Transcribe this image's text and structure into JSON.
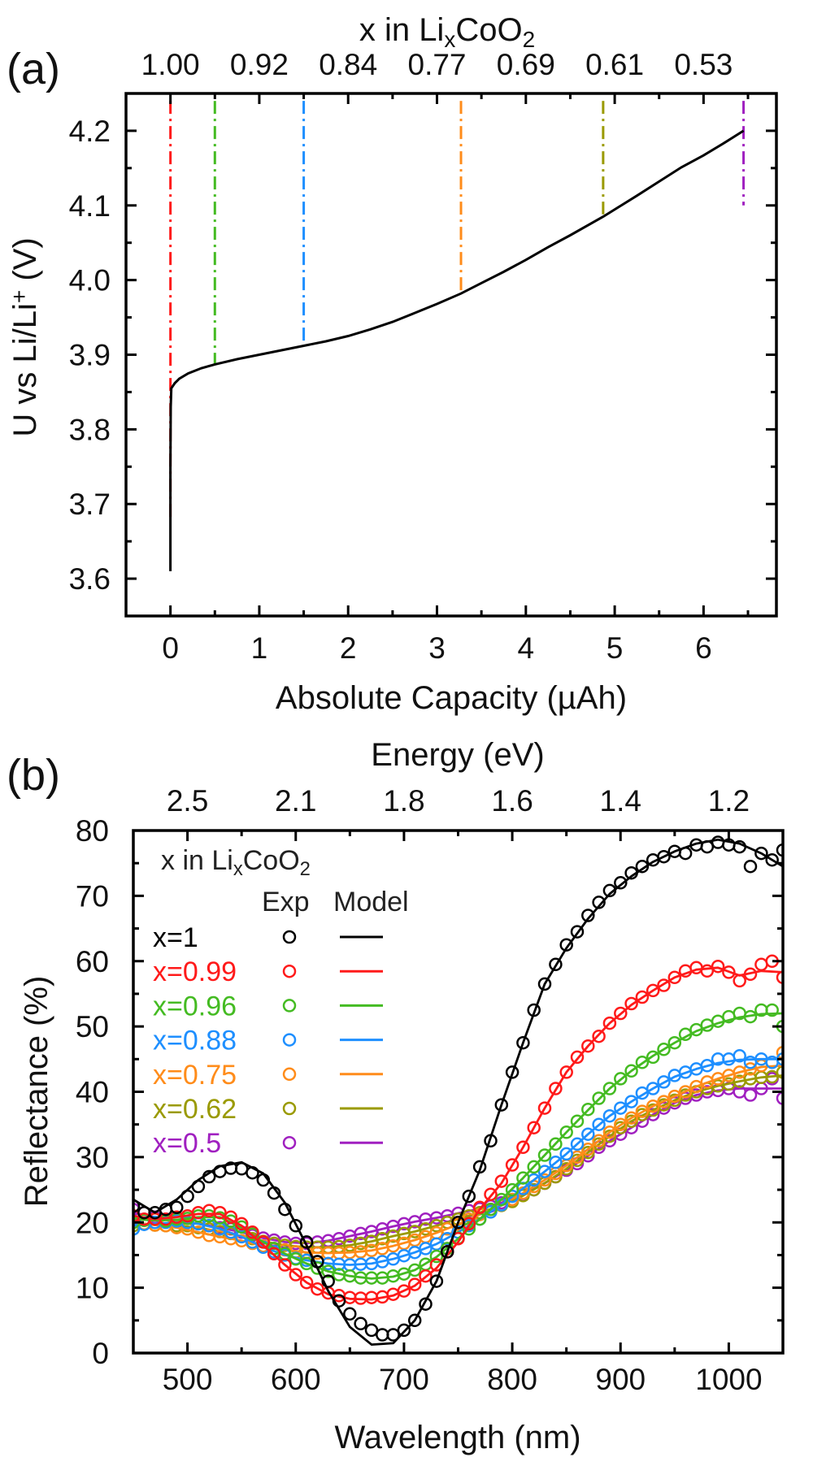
{
  "chart_data": [
    {
      "panel_label": "(a)",
      "type": "line",
      "xlabel": "Absolute Capacity (µAh)",
      "ylabel_parts": [
        {
          "t": "U vs Li/Li"
        },
        {
          "t": "+",
          "sup": true
        },
        {
          "t": " (V)"
        }
      ],
      "top_xlabel_parts": [
        {
          "t": "x in Li"
        },
        {
          "t": "x",
          "sub": true
        },
        {
          "t": "CoO"
        },
        {
          "t": "2",
          "sub": true
        }
      ],
      "xlim": [
        -0.5,
        6.82
      ],
      "ylim": [
        3.55,
        4.25
      ],
      "xticks": [
        0,
        1,
        2,
        3,
        4,
        5,
        6
      ],
      "xtick_labels": [
        "0",
        "1",
        "2",
        "3",
        "4",
        "5",
        "6"
      ],
      "yticks": [
        3.6,
        3.7,
        3.8,
        3.9,
        4.0,
        4.1,
        4.2
      ],
      "ytick_labels": [
        "3.6",
        "3.7",
        "3.8",
        "3.9",
        "4.0",
        "4.1",
        "4.2"
      ],
      "top_tick_labels": [
        "1.00",
        "0.92",
        "0.84",
        "0.77",
        "0.69",
        "0.61",
        "0.53"
      ],
      "grid": false,
      "curve": {
        "color": "#000000",
        "x": [
          0,
          0,
          0.003,
          0.01,
          0.05,
          0.1,
          0.2,
          0.35,
          0.5,
          0.75,
          1,
          1.25,
          1.5,
          1.75,
          2,
          2.25,
          2.5,
          2.75,
          3,
          3.27,
          3.5,
          3.75,
          4,
          4.25,
          4.5,
          4.87,
          5.25,
          5.5,
          5.75,
          6,
          6.25,
          6.45
        ],
        "y": [
          3.61,
          3.75,
          3.83,
          3.855,
          3.862,
          3.868,
          3.875,
          3.882,
          3.887,
          3.894,
          3.9,
          3.906,
          3.912,
          3.918,
          3.925,
          3.934,
          3.944,
          3.956,
          3.968,
          3.982,
          3.996,
          4.011,
          4.027,
          4.044,
          4.06,
          4.085,
          4.113,
          4.132,
          4.151,
          4.167,
          4.185,
          4.2
        ]
      },
      "markers": [
        {
          "x": 0.0,
          "y_from": 3.68,
          "y_to": 4.24,
          "color": "#ff1a1a"
        },
        {
          "x": 0.5,
          "y_from": 3.887,
          "y_to": 4.24,
          "color": "#44bb22"
        },
        {
          "x": 1.5,
          "y_from": 3.912,
          "y_to": 4.24,
          "color": "#1e8fff"
        },
        {
          "x": 3.27,
          "y_from": 3.985,
          "y_to": 4.24,
          "color": "#ff8c1a"
        },
        {
          "x": 4.87,
          "y_from": 4.088,
          "y_to": 4.24,
          "color": "#9a9a00"
        },
        {
          "x": 6.45,
          "y_from": 4.1,
          "y_to": 4.24,
          "color": "#a020c0"
        }
      ]
    },
    {
      "panel_label": "(b)",
      "type": "scatter+line",
      "xlabel": "Wavelength (nm)",
      "ylabel": "Reflectance (%)",
      "top_xlabel": "Energy (eV)",
      "xlim": [
        450,
        1050
      ],
      "ylim": [
        0,
        80
      ],
      "xticks": [
        500,
        600,
        700,
        800,
        900,
        1000
      ],
      "xtick_labels": [
        "500",
        "600",
        "700",
        "800",
        "900",
        "1000"
      ],
      "yticks": [
        0,
        10,
        20,
        30,
        40,
        50,
        60,
        70,
        80
      ],
      "ytick_labels": [
        "0",
        "10",
        "20",
        "30",
        "40",
        "50",
        "60",
        "70",
        "80"
      ],
      "top_tick_labels": [
        "2.5",
        "2.1",
        "1.8",
        "1.6",
        "1.4",
        "1.2"
      ],
      "grid": false,
      "legend": {
        "placement": "top-left",
        "title_parts": [
          {
            "t": "x in Li"
          },
          {
            "t": "x",
            "sub": true
          },
          {
            "t": "CoO"
          },
          {
            "t": "2",
            "sub": true
          }
        ],
        "exp_header": "Exp",
        "model_header": "Model"
      },
      "model_wavelengths": [
        450,
        470,
        490,
        510,
        530,
        550,
        570,
        590,
        610,
        630,
        650,
        670,
        690,
        710,
        730,
        750,
        770,
        790,
        810,
        830,
        850,
        870,
        890,
        910,
        930,
        950,
        970,
        990,
        1010,
        1030,
        1050
      ],
      "exp_wavelengths": [
        450,
        460,
        470,
        480,
        490,
        500,
        510,
        520,
        530,
        540,
        550,
        560,
        570,
        580,
        590,
        600,
        610,
        620,
        630,
        640,
        650,
        660,
        670,
        680,
        690,
        700,
        710,
        720,
        730,
        740,
        750,
        760,
        770,
        780,
        790,
        800,
        810,
        820,
        830,
        840,
        850,
        860,
        870,
        880,
        890,
        900,
        910,
        920,
        930,
        940,
        950,
        960,
        970,
        980,
        990,
        1000,
        1010,
        1020,
        1030,
        1040,
        1050
      ],
      "series": [
        {
          "name": "x=1",
          "color": "#000000",
          "model": [
            23.5,
            21.5,
            23.5,
            26.5,
            28.6,
            29.2,
            27.5,
            23,
            16.5,
            9.5,
            4,
            1.3,
            1.5,
            5,
            11,
            20,
            28,
            38,
            47.5,
            56.5,
            62,
            66.5,
            70.3,
            73,
            75.2,
            76.8,
            78,
            78.6,
            78,
            76.5,
            74.5
          ],
          "exp": [
            22.5,
            21.5,
            21.5,
            22,
            22.3,
            24,
            25.5,
            27,
            27.8,
            28.3,
            28.2,
            27.6,
            26.5,
            24.5,
            22,
            19.5,
            17,
            14,
            11,
            8,
            6,
            4.5,
            3.5,
            2.8,
            2.8,
            3.5,
            5,
            7.5,
            11,
            15.5,
            20,
            24,
            28.5,
            32.5,
            38,
            43,
            47.5,
            52.5,
            56.5,
            59.5,
            62.5,
            64.5,
            67,
            69,
            70.8,
            72,
            73.5,
            74.5,
            75.5,
            76,
            76.8,
            76.5,
            77.8,
            77.5,
            78.2,
            77.8,
            77.5,
            74.5,
            76.5,
            75.5,
            77
          ]
        },
        {
          "name": "x=0.99",
          "color": "#ff1a1a",
          "model": [
            21,
            20.5,
            20.8,
            21.3,
            21.3,
            19.5,
            16.5,
            13.5,
            10.8,
            9,
            8.3,
            8.2,
            8.8,
            10.3,
            13,
            17,
            22,
            26,
            31.5,
            37.5,
            43,
            47,
            50.5,
            53.3,
            55.5,
            57.5,
            58.7,
            59,
            57.8,
            58.5,
            58.3
          ],
          "exp": [
            21,
            20.5,
            20.5,
            20.5,
            20.8,
            21,
            21.5,
            21.8,
            21.5,
            20.8,
            19.8,
            18.5,
            17,
            15.2,
            13.5,
            12,
            10.8,
            9.8,
            9.2,
            8.8,
            8.5,
            8.4,
            8.5,
            8.6,
            9,
            9.5,
            10.5,
            11.8,
            13.5,
            15.5,
            17.5,
            19.8,
            22.3,
            24.3,
            26.3,
            28.8,
            31.5,
            34.5,
            37.5,
            40.5,
            43,
            45.3,
            47,
            48.5,
            50.5,
            52,
            53.5,
            54.5,
            55.5,
            56.3,
            57.5,
            58.5,
            59,
            58.5,
            59.2,
            58.3,
            57,
            58,
            59.5,
            60,
            57.5
          ]
        },
        {
          "name": "x=0.96",
          "color": "#44bb22",
          "model": [
            20.5,
            20.3,
            20.4,
            20.8,
            20.8,
            19.2,
            17,
            15.2,
            13.7,
            12.5,
            11.8,
            11.4,
            11.7,
            12.7,
            14.7,
            17.5,
            20.5,
            23.5,
            26.8,
            30.3,
            33.8,
            37.2,
            40.5,
            43.2,
            45.5,
            47.5,
            49.3,
            50.5,
            51.4,
            51.9,
            52
          ],
          "exp": [
            20,
            20.3,
            20.5,
            20.2,
            20.5,
            20.6,
            21,
            21,
            20.7,
            20.2,
            19.3,
            18.2,
            17,
            16,
            15.2,
            14.4,
            13.7,
            13,
            12.5,
            12,
            11.8,
            11.5,
            11.5,
            11.5,
            11.8,
            12.1,
            12.7,
            13.6,
            14.8,
            16,
            17.6,
            19,
            20.5,
            22,
            23.5,
            25,
            26.8,
            28.5,
            30.3,
            32,
            33.8,
            35.5,
            37.3,
            39,
            40.5,
            42,
            43.2,
            44.5,
            45.3,
            46.5,
            47.5,
            48.8,
            49.5,
            50.2,
            50.8,
            51.5,
            52,
            51.5,
            52.5,
            52.5,
            50
          ]
        },
        {
          "name": "x=0.88",
          "color": "#1e8fff",
          "model": [
            19.5,
            19.8,
            20,
            19.8,
            19,
            17.8,
            16.2,
            15,
            14.2,
            13.7,
            13.5,
            13.7,
            14.4,
            15.4,
            16.7,
            18.5,
            20.5,
            22.7,
            25.2,
            27.8,
            30.5,
            33.5,
            36.3,
            38.5,
            40.5,
            42.3,
            43.5,
            44.4,
            44.9,
            45,
            45
          ],
          "exp": [
            19,
            19.7,
            20,
            20,
            20.2,
            20,
            19.8,
            19.5,
            19,
            18.5,
            17.8,
            17,
            16.2,
            15.5,
            15,
            14.5,
            14.2,
            14,
            13.7,
            13.6,
            13.5,
            13.6,
            13.7,
            14,
            14.4,
            14.9,
            15.4,
            16,
            16.7,
            17.5,
            18.5,
            19.5,
            20.5,
            21.6,
            22.7,
            24,
            25.2,
            26.5,
            27.8,
            29.2,
            30.5,
            32,
            33.5,
            35,
            36.3,
            37.5,
            38.5,
            39.8,
            40.5,
            41.5,
            42.5,
            43,
            43.5,
            44,
            45,
            45,
            45.5,
            44.5,
            45,
            44.5,
            45
          ]
        },
        {
          "name": "x=0.75",
          "color": "#ff8c1a",
          "model": [
            20,
            19.6,
            19.2,
            18.5,
            17.8,
            17.2,
            16.4,
            15.8,
            15.4,
            15.3,
            15.4,
            15.7,
            16.4,
            17.3,
            18.4,
            19.7,
            21.2,
            22.7,
            24.5,
            26.5,
            28.7,
            31.2,
            33.8,
            36,
            37.8,
            39.3,
            40.8,
            42,
            43,
            43.8,
            44
          ],
          "exp": [
            20,
            19.8,
            19.6,
            19.5,
            19.2,
            19,
            18.5,
            18,
            17.8,
            17.5,
            17.2,
            16.8,
            16.4,
            16,
            15.8,
            15.5,
            15.4,
            15.3,
            15.3,
            15.3,
            15.4,
            15.5,
            15.7,
            16,
            16.4,
            16.8,
            17.3,
            17.8,
            18.4,
            19,
            19.7,
            20.5,
            21.2,
            22,
            22.7,
            23.5,
            24.5,
            25.5,
            26.5,
            27.5,
            28.7,
            30,
            31.2,
            32.5,
            33.8,
            35,
            36,
            37,
            37.8,
            38.5,
            39.3,
            40,
            40.8,
            41.5,
            42,
            42.5,
            43,
            43.5,
            44,
            44.5,
            46
          ]
        },
        {
          "name": "x=0.62",
          "color": "#9a9a00",
          "model": [
            20,
            19.6,
            19.5,
            19.2,
            18.6,
            17.9,
            17.1,
            16.5,
            16.2,
            16.2,
            16.5,
            17.1,
            17.9,
            18.6,
            19.5,
            20.5,
            21.5,
            22.6,
            24.1,
            26,
            28.2,
            30.7,
            33.2,
            35.5,
            37.2,
            38.7,
            40,
            40.9,
            41.6,
            42.2,
            42.5
          ],
          "exp": [
            19.5,
            19.8,
            19.6,
            19.5,
            19.5,
            19.5,
            19.2,
            19,
            18.6,
            18.3,
            17.9,
            17.5,
            17.1,
            16.8,
            16.5,
            16.3,
            16.2,
            16.2,
            16.2,
            16.3,
            16.5,
            16.8,
            17.1,
            17.5,
            17.9,
            18.3,
            18.6,
            19,
            19.5,
            20,
            20.5,
            21,
            21.5,
            22,
            22.6,
            23.2,
            24.1,
            25,
            26,
            27,
            28.2,
            29.5,
            30.7,
            32,
            33.2,
            34.5,
            35.5,
            36.5,
            37.2,
            38,
            38.7,
            39.5,
            40,
            40.5,
            40.9,
            41.2,
            41.6,
            42,
            42.2,
            42.3,
            43
          ]
        },
        {
          "name": "x=0.5",
          "color": "#a020c0",
          "model": [
            21.5,
            20.8,
            20.2,
            19.8,
            19.2,
            18.5,
            17.6,
            17,
            16.8,
            17.2,
            17.9,
            18.6,
            19.4,
            20.1,
            20.7,
            21.4,
            22.1,
            23,
            24.2,
            26,
            28,
            30.2,
            32.5,
            34.5,
            36.5,
            38.3,
            39.5,
            40.2,
            40.5,
            40.5,
            40.5
          ],
          "exp": [
            22,
            21.5,
            20.8,
            20.5,
            20.2,
            20,
            19.8,
            19.5,
            19.2,
            19,
            18.5,
            18,
            17.6,
            17.3,
            17,
            16.8,
            16.8,
            17,
            17.2,
            17.5,
            17.9,
            18.3,
            18.6,
            19,
            19.4,
            19.8,
            20.1,
            20.5,
            20.7,
            21,
            21.4,
            21.8,
            22.1,
            22.5,
            23,
            23.5,
            24.2,
            25,
            26,
            27,
            28,
            29,
            30.2,
            31.5,
            32.5,
            33.5,
            34.5,
            35.5,
            36.5,
            37.5,
            38.3,
            39,
            39.5,
            40,
            40.2,
            40.5,
            40,
            39.5,
            40.5,
            42,
            39
          ]
        }
      ]
    }
  ]
}
